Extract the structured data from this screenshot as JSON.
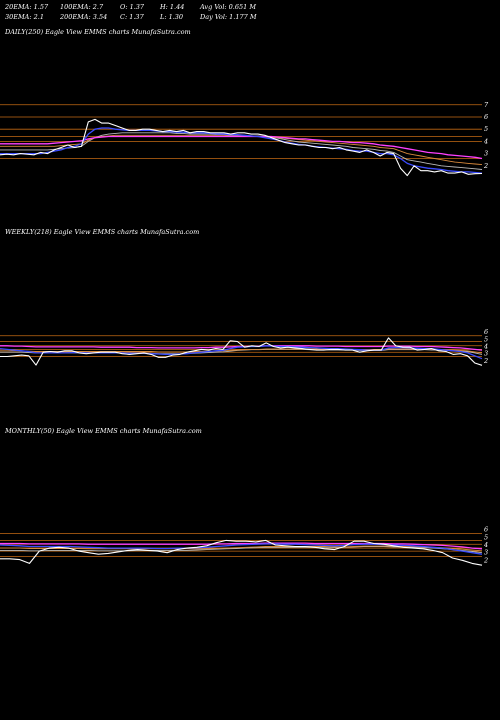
{
  "header": {
    "row1": [
      "20EMA: 1.57",
      "100EMA: 2.7",
      "O: 1.37",
      "H: 1.44",
      "Avg Vol: 0.651 M"
    ],
    "row2": [
      "30EMA: 2.1",
      "200EMA: 3.54",
      "C: 1.37",
      "L: 1.30",
      "Day Vol: 1.177 M"
    ]
  },
  "colors": {
    "background": "#000000",
    "price": "#ffffff",
    "ema_blue": "#3a4bff",
    "ema_magenta": "#ff40ff",
    "ema_orange": "#d7893b",
    "ema_gray": "#b8b8b8",
    "hline": "#c46a14"
  },
  "chart_data": [
    {
      "type": "line",
      "title": "DAILY(250) Eagle   View  EMMS charts MunafaSutra.com",
      "ylim": [
        1,
        7.8
      ],
      "ticks": [
        "2",
        "3",
        "4",
        "5",
        "6",
        "7"
      ],
      "hlines": [
        7,
        6,
        5,
        4.4,
        4,
        2.6
      ],
      "series": [
        {
          "role": "price",
          "values": [
            2.9,
            2.95,
            2.9,
            3.0,
            2.95,
            2.9,
            3.1,
            3.0,
            3.3,
            3.5,
            3.7,
            3.5,
            3.6,
            5.6,
            5.8,
            5.5,
            5.5,
            5.3,
            5.1,
            4.9,
            4.9,
            5.0,
            5.0,
            4.9,
            4.8,
            4.9,
            4.8,
            4.9,
            4.7,
            4.8,
            4.8,
            4.7,
            4.7,
            4.7,
            4.6,
            4.7,
            4.7,
            4.6,
            4.6,
            4.5,
            4.3,
            4.1,
            3.9,
            3.8,
            3.7,
            3.7,
            3.6,
            3.5,
            3.5,
            3.4,
            3.5,
            3.3,
            3.2,
            3.1,
            3.3,
            3.1,
            2.8,
            3.1,
            3.0,
            1.8,
            1.2,
            2.0,
            1.6,
            1.6,
            1.5,
            1.6,
            1.4,
            1.4,
            1.5,
            1.3,
            1.35,
            1.37
          ]
        },
        {
          "role": "ema_blue",
          "values": [
            3.0,
            3.0,
            3.0,
            3.0,
            3.0,
            3.0,
            3.0,
            3.1,
            3.2,
            3.3,
            3.5,
            3.6,
            3.8,
            4.6,
            5.0,
            5.1,
            5.1,
            5.0,
            4.95,
            4.9,
            4.9,
            4.9,
            4.9,
            4.85,
            4.8,
            4.8,
            4.75,
            4.75,
            4.7,
            4.7,
            4.7,
            4.65,
            4.6,
            4.6,
            4.55,
            4.55,
            4.5,
            4.45,
            4.4,
            4.3,
            4.2,
            4.1,
            3.95,
            3.85,
            3.75,
            3.7,
            3.6,
            3.55,
            3.5,
            3.45,
            3.4,
            3.35,
            3.25,
            3.2,
            3.2,
            3.1,
            3.0,
            3.0,
            2.9,
            2.6,
            2.2,
            2.0,
            1.9,
            1.8,
            1.75,
            1.7,
            1.6,
            1.55,
            1.5,
            1.5,
            1.45,
            1.4
          ]
        },
        {
          "role": "ema_magenta",
          "values": [
            3.8,
            3.8,
            3.8,
            3.8,
            3.8,
            3.8,
            3.8,
            3.8,
            3.85,
            3.9,
            3.95,
            4.0,
            4.05,
            4.2,
            4.3,
            4.35,
            4.4,
            4.4,
            4.4,
            4.4,
            4.4,
            4.4,
            4.4,
            4.4,
            4.4,
            4.4,
            4.4,
            4.4,
            4.4,
            4.4,
            4.4,
            4.4,
            4.4,
            4.4,
            4.4,
            4.4,
            4.4,
            4.4,
            4.4,
            4.4,
            4.4,
            4.35,
            4.3,
            4.25,
            4.2,
            4.2,
            4.15,
            4.1,
            4.05,
            4.0,
            4.0,
            3.95,
            3.9,
            3.9,
            3.85,
            3.8,
            3.7,
            3.65,
            3.6,
            3.5,
            3.4,
            3.3,
            3.2,
            3.1,
            3.05,
            3.0,
            2.9,
            2.85,
            2.8,
            2.75,
            2.7,
            2.6
          ]
        },
        {
          "role": "ema_orange",
          "values": [
            3.6,
            3.6,
            3.6,
            3.6,
            3.6,
            3.6,
            3.6,
            3.6,
            3.6,
            3.65,
            3.7,
            3.75,
            3.8,
            4.1,
            4.3,
            4.4,
            4.45,
            4.5,
            4.5,
            4.5,
            4.5,
            4.5,
            4.5,
            4.5,
            4.5,
            4.5,
            4.5,
            4.5,
            4.5,
            4.5,
            4.5,
            4.5,
            4.5,
            4.5,
            4.45,
            4.45,
            4.45,
            4.45,
            4.4,
            4.4,
            4.35,
            4.3,
            4.25,
            4.2,
            4.15,
            4.1,
            4.05,
            4.0,
            3.95,
            3.9,
            3.85,
            3.8,
            3.75,
            3.7,
            3.65,
            3.6,
            3.5,
            3.45,
            3.4,
            3.2,
            3.0,
            2.9,
            2.8,
            2.7,
            2.6,
            2.5,
            2.4,
            2.3,
            2.25,
            2.2,
            2.15,
            2.1
          ]
        },
        {
          "role": "ema_gray",
          "values": [
            3.3,
            3.3,
            3.3,
            3.3,
            3.3,
            3.3,
            3.3,
            3.3,
            3.35,
            3.4,
            3.45,
            3.5,
            3.6,
            4.0,
            4.3,
            4.5,
            4.6,
            4.65,
            4.7,
            4.7,
            4.7,
            4.7,
            4.7,
            4.7,
            4.7,
            4.7,
            4.65,
            4.65,
            4.6,
            4.6,
            4.6,
            4.6,
            4.55,
            4.55,
            4.5,
            4.5,
            4.5,
            4.45,
            4.45,
            4.4,
            4.35,
            4.25,
            4.15,
            4.05,
            3.95,
            3.9,
            3.85,
            3.8,
            3.75,
            3.7,
            3.65,
            3.6,
            3.5,
            3.45,
            3.4,
            3.35,
            3.25,
            3.2,
            3.1,
            2.8,
            2.5,
            2.4,
            2.3,
            2.2,
            2.1,
            2.0,
            1.95,
            1.9,
            1.85,
            1.8,
            1.75,
            1.7
          ]
        }
      ]
    },
    {
      "type": "line",
      "title": "WEEKLY(218) Eagle   View  EMMS charts MunafaSutra.com",
      "ylim": [
        1,
        7
      ],
      "ticks": [
        "2",
        "3",
        "4",
        "5",
        "6"
      ],
      "hlines": [
        5.5,
        4.7,
        4.1,
        3.6,
        3.2,
        2.6
      ],
      "series": [
        {
          "role": "price",
          "values": [
            2.6,
            2.6,
            2.7,
            2.8,
            2.7,
            1.4,
            3.2,
            3.3,
            3.2,
            3.4,
            3.4,
            3.1,
            3.0,
            3.1,
            3.2,
            3.2,
            3.2,
            3.0,
            2.9,
            3.0,
            3.1,
            2.9,
            2.5,
            2.5,
            2.8,
            2.9,
            3.2,
            3.4,
            3.6,
            3.5,
            3.7,
            3.6,
            4.8,
            4.7,
            3.9,
            4.1,
            4.0,
            4.5,
            4.0,
            3.8,
            3.9,
            3.8,
            3.7,
            3.6,
            3.5,
            3.5,
            3.6,
            3.6,
            3.5,
            3.5,
            3.2,
            3.4,
            3.5,
            3.5,
            5.2,
            4.1,
            3.9,
            3.9,
            3.5,
            3.6,
            3.7,
            3.4,
            3.3,
            2.9,
            3.0,
            2.7,
            1.7,
            1.37
          ]
        },
        {
          "role": "ema_blue",
          "values": [
            3.7,
            3.6,
            3.5,
            3.4,
            3.3,
            3.1,
            3.1,
            3.1,
            3.1,
            3.1,
            3.15,
            3.15,
            3.1,
            3.1,
            3.1,
            3.1,
            3.1,
            3.1,
            3.05,
            3.05,
            3.05,
            3.0,
            2.95,
            2.9,
            2.9,
            2.95,
            3.0,
            3.1,
            3.2,
            3.3,
            3.4,
            3.45,
            3.7,
            3.9,
            3.95,
            4.0,
            4.0,
            4.1,
            4.05,
            4.0,
            4.0,
            3.95,
            3.9,
            3.85,
            3.8,
            3.75,
            3.7,
            3.7,
            3.65,
            3.6,
            3.55,
            3.5,
            3.5,
            3.5,
            3.8,
            3.85,
            3.85,
            3.8,
            3.75,
            3.7,
            3.7,
            3.6,
            3.5,
            3.4,
            3.3,
            3.1,
            2.7,
            2.3
          ]
        },
        {
          "role": "ema_magenta",
          "values": [
            4.1,
            4.1,
            4.05,
            4.05,
            4.0,
            3.95,
            3.95,
            3.95,
            3.95,
            3.95,
            3.95,
            3.95,
            3.95,
            3.95,
            3.9,
            3.9,
            3.9,
            3.9,
            3.9,
            3.85,
            3.85,
            3.85,
            3.8,
            3.8,
            3.8,
            3.8,
            3.8,
            3.8,
            3.85,
            3.85,
            3.9,
            3.9,
            3.95,
            4.0,
            4.0,
            4.05,
            4.05,
            4.1,
            4.1,
            4.1,
            4.1,
            4.1,
            4.1,
            4.1,
            4.05,
            4.05,
            4.05,
            4.05,
            4.0,
            4.0,
            4.0,
            4.0,
            4.0,
            4.0,
            4.05,
            4.05,
            4.05,
            4.05,
            4.0,
            4.0,
            4.0,
            3.95,
            3.9,
            3.85,
            3.8,
            3.7,
            3.6,
            3.5
          ]
        },
        {
          "role": "ema_orange",
          "values": [
            3.4,
            3.4,
            3.4,
            3.4,
            3.35,
            3.3,
            3.3,
            3.3,
            3.3,
            3.3,
            3.3,
            3.3,
            3.3,
            3.3,
            3.3,
            3.3,
            3.3,
            3.3,
            3.3,
            3.3,
            3.3,
            3.3,
            3.25,
            3.25,
            3.25,
            3.25,
            3.25,
            3.3,
            3.3,
            3.35,
            3.35,
            3.4,
            3.45,
            3.5,
            3.55,
            3.6,
            3.6,
            3.65,
            3.65,
            3.65,
            3.65,
            3.65,
            3.65,
            3.65,
            3.65,
            3.6,
            3.6,
            3.6,
            3.6,
            3.6,
            3.6,
            3.6,
            3.6,
            3.6,
            3.65,
            3.65,
            3.65,
            3.65,
            3.65,
            3.65,
            3.6,
            3.6,
            3.55,
            3.5,
            3.45,
            3.4,
            3.25,
            3.1
          ]
        },
        {
          "role": "ema_gray",
          "values": [
            3.2,
            3.2,
            3.2,
            3.2,
            3.15,
            3.1,
            3.1,
            3.1,
            3.1,
            3.1,
            3.1,
            3.1,
            3.1,
            3.1,
            3.1,
            3.1,
            3.1,
            3.1,
            3.1,
            3.05,
            3.05,
            3.05,
            3.0,
            3.0,
            3.0,
            3.0,
            3.05,
            3.05,
            3.1,
            3.15,
            3.2,
            3.25,
            3.35,
            3.45,
            3.5,
            3.55,
            3.55,
            3.6,
            3.6,
            3.6,
            3.6,
            3.6,
            3.6,
            3.55,
            3.55,
            3.55,
            3.5,
            3.5,
            3.5,
            3.5,
            3.45,
            3.45,
            3.45,
            3.45,
            3.55,
            3.55,
            3.55,
            3.55,
            3.55,
            3.55,
            3.5,
            3.5,
            3.45,
            3.4,
            3.35,
            3.3,
            3.1,
            2.9
          ]
        }
      ]
    },
    {
      "type": "line",
      "title": "MONTHLY(50) Eagle   View  EMMS charts MunafaSutra.com",
      "ylim": [
        1,
        7
      ],
      "ticks": [
        "2",
        "3",
        "4",
        "5",
        "6"
      ],
      "hlines": [
        5.5,
        4.6,
        4.1,
        3.6,
        3.2,
        2.5
      ],
      "series": [
        {
          "role": "price",
          "values": [
            2.2,
            2.2,
            2.1,
            1.6,
            3.2,
            3.6,
            3.7,
            3.6,
            3.2,
            3.0,
            2.8,
            2.9,
            3.1,
            3.3,
            3.4,
            3.3,
            3.2,
            3.0,
            3.4,
            3.6,
            3.7,
            3.9,
            4.3,
            4.6,
            4.5,
            4.5,
            4.4,
            4.6,
            4.0,
            3.9,
            3.8,
            3.8,
            3.7,
            3.5,
            3.4,
            3.8,
            4.5,
            4.5,
            4.2,
            4.1,
            3.9,
            3.7,
            3.6,
            3.5,
            3.3,
            3.0,
            2.3,
            2.0,
            1.6,
            1.37
          ]
        },
        {
          "role": "ema_blue",
          "values": [
            4.0,
            3.95,
            3.9,
            3.8,
            3.8,
            3.8,
            3.8,
            3.8,
            3.75,
            3.7,
            3.65,
            3.6,
            3.6,
            3.6,
            3.6,
            3.6,
            3.55,
            3.55,
            3.6,
            3.6,
            3.65,
            3.7,
            3.8,
            3.9,
            4.0,
            4.05,
            4.1,
            4.15,
            4.15,
            4.1,
            4.1,
            4.05,
            4.0,
            3.95,
            3.9,
            3.95,
            4.05,
            4.1,
            4.1,
            4.05,
            4.0,
            3.95,
            3.9,
            3.8,
            3.7,
            3.6,
            3.4,
            3.2,
            3.0,
            2.8
          ]
        },
        {
          "role": "ema_magenta",
          "values": [
            4.2,
            4.2,
            4.2,
            4.15,
            4.15,
            4.15,
            4.15,
            4.15,
            4.15,
            4.1,
            4.1,
            4.1,
            4.1,
            4.1,
            4.1,
            4.1,
            4.1,
            4.1,
            4.1,
            4.1,
            4.1,
            4.1,
            4.15,
            4.15,
            4.2,
            4.2,
            4.2,
            4.25,
            4.25,
            4.25,
            4.25,
            4.25,
            4.2,
            4.2,
            4.2,
            4.2,
            4.2,
            4.2,
            4.2,
            4.2,
            4.15,
            4.15,
            4.1,
            4.05,
            4.0,
            3.95,
            3.85,
            3.75,
            3.6,
            3.5
          ]
        },
        {
          "role": "ema_orange",
          "values": [
            3.6,
            3.6,
            3.6,
            3.55,
            3.55,
            3.55,
            3.55,
            3.55,
            3.55,
            3.5,
            3.5,
            3.5,
            3.5,
            3.5,
            3.5,
            3.5,
            3.5,
            3.5,
            3.5,
            3.5,
            3.5,
            3.5,
            3.55,
            3.6,
            3.65,
            3.7,
            3.75,
            3.8,
            3.8,
            3.8,
            3.8,
            3.8,
            3.8,
            3.8,
            3.75,
            3.75,
            3.8,
            3.85,
            3.85,
            3.85,
            3.85,
            3.8,
            3.8,
            3.75,
            3.7,
            3.65,
            3.55,
            3.45,
            3.35,
            3.25
          ]
        },
        {
          "role": "ema_gray",
          "values": [
            3.3,
            3.3,
            3.3,
            3.25,
            3.25,
            3.3,
            3.3,
            3.3,
            3.3,
            3.3,
            3.25,
            3.25,
            3.25,
            3.25,
            3.3,
            3.3,
            3.3,
            3.3,
            3.3,
            3.3,
            3.35,
            3.4,
            3.45,
            3.5,
            3.55,
            3.6,
            3.65,
            3.7,
            3.7,
            3.7,
            3.7,
            3.7,
            3.7,
            3.65,
            3.65,
            3.7,
            3.75,
            3.8,
            3.8,
            3.8,
            3.75,
            3.75,
            3.7,
            3.65,
            3.6,
            3.5,
            3.4,
            3.3,
            3.15,
            3.0
          ]
        }
      ]
    }
  ]
}
